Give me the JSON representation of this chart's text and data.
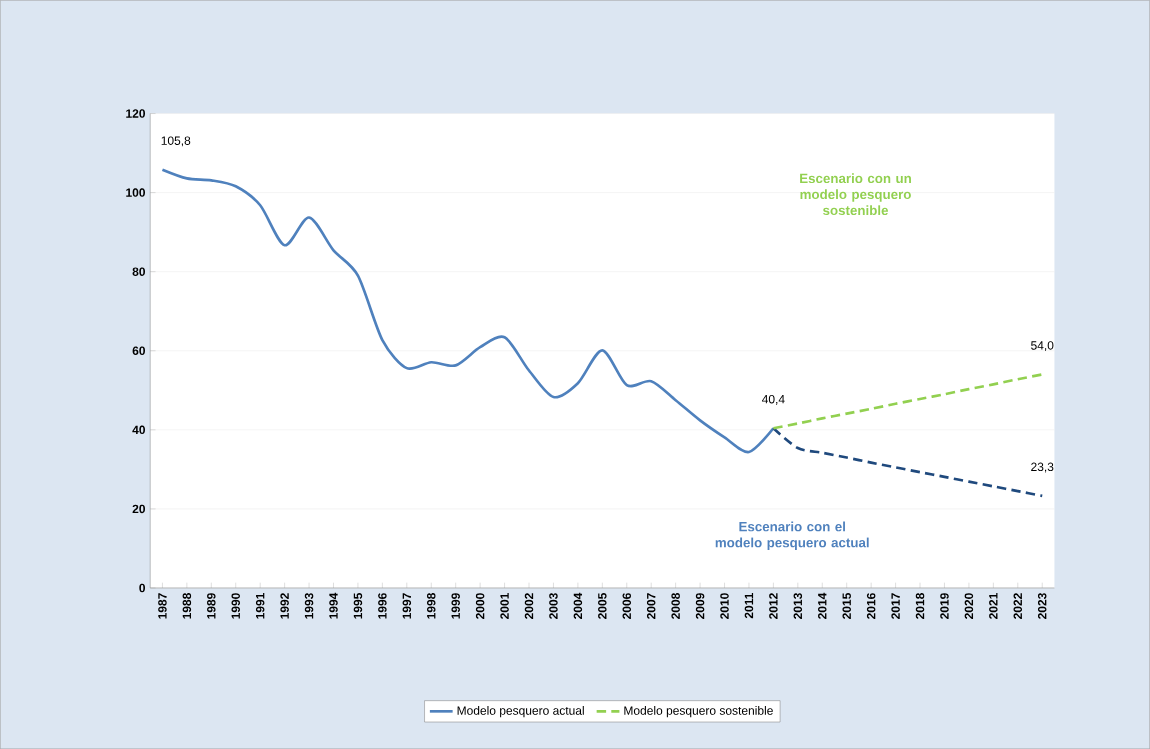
{
  "chart_data": {
    "type": "line",
    "categories": [
      "1987",
      "1988",
      "1989",
      "1990",
      "1991",
      "1992",
      "1993",
      "1994",
      "1995",
      "1996",
      "1997",
      "1998",
      "1999",
      "2000",
      "2001",
      "2002",
      "2003",
      "2004",
      "2005",
      "2006",
      "2007",
      "2008",
      "2009",
      "2010",
      "2011",
      "2012",
      "2013",
      "2014",
      "2015",
      "2016",
      "2017",
      "2018",
      "2019",
      "2020",
      "2021",
      "2022",
      "2023"
    ],
    "series": [
      {
        "name": "Modelo pesquero actual",
        "color": "#4f81bd",
        "line_style": "solid",
        "values": [
          105.8,
          103.6,
          103.1,
          101.6,
          96.8,
          86.7,
          93.7,
          85.4,
          79,
          62.7,
          55.6,
          57.1,
          56.3,
          60.9,
          63.4,
          55,
          48.3,
          51.8,
          60.1,
          51.3,
          52.3,
          47.5,
          42.4,
          38.1,
          34.4,
          40.4,
          null,
          null,
          null,
          null,
          null,
          null,
          null,
          null,
          null,
          null,
          null
        ],
        "value_labels": [
          "105,8",
          null,
          null,
          null,
          null,
          null,
          null,
          null,
          null,
          null,
          null,
          null,
          null,
          null,
          null,
          null,
          null,
          null,
          null,
          null,
          null,
          null,
          null,
          null,
          null,
          "40,4",
          null,
          null,
          null,
          null,
          null,
          null,
          null,
          null,
          null,
          null,
          null
        ]
      },
      {
        "color": "#1f497d",
        "line_style": "dashed",
        "values": [
          null,
          null,
          null,
          null,
          null,
          null,
          null,
          null,
          null,
          null,
          null,
          null,
          null,
          null,
          null,
          null,
          null,
          null,
          null,
          null,
          null,
          null,
          null,
          null,
          null,
          40.4,
          35.4,
          34.2,
          33.0,
          31.7,
          30.5,
          29.3,
          28.1,
          26.9,
          25.7,
          24.5,
          23.3
        ],
        "value_labels": [
          null,
          null,
          null,
          null,
          null,
          null,
          null,
          null,
          null,
          null,
          null,
          null,
          null,
          null,
          null,
          null,
          null,
          null,
          null,
          null,
          null,
          null,
          null,
          null,
          null,
          null,
          null,
          null,
          null,
          null,
          null,
          null,
          null,
          null,
          null,
          null,
          "23,3"
        ]
      },
      {
        "name": "Modelo pesquero sostenible",
        "color": "#92d050",
        "line_style": "dashed",
        "values": [
          null,
          null,
          null,
          null,
          null,
          null,
          null,
          null,
          null,
          null,
          null,
          null,
          null,
          null,
          null,
          null,
          null,
          null,
          null,
          null,
          null,
          null,
          null,
          null,
          null,
          40.4,
          41.6,
          42.9,
          44.1,
          45.3,
          46.6,
          47.8,
          49.0,
          50.3,
          51.5,
          52.8,
          54.0
        ],
        "value_labels": [
          null,
          null,
          null,
          null,
          null,
          null,
          null,
          null,
          null,
          null,
          null,
          null,
          null,
          null,
          null,
          null,
          null,
          null,
          null,
          null,
          null,
          null,
          null,
          null,
          null,
          null,
          null,
          null,
          null,
          null,
          null,
          null,
          null,
          null,
          null,
          null,
          "54,0"
        ]
      }
    ],
    "ylim": [
      0,
      120
    ],
    "yticks": [
      0,
      20,
      40,
      60,
      80,
      100,
      120
    ],
    "grid": "y",
    "legend": "bottom",
    "annotations": [
      "Escenario con un modelo pesquero sostenible",
      "Escenario con el modelo pesquero actual"
    ]
  }
}
